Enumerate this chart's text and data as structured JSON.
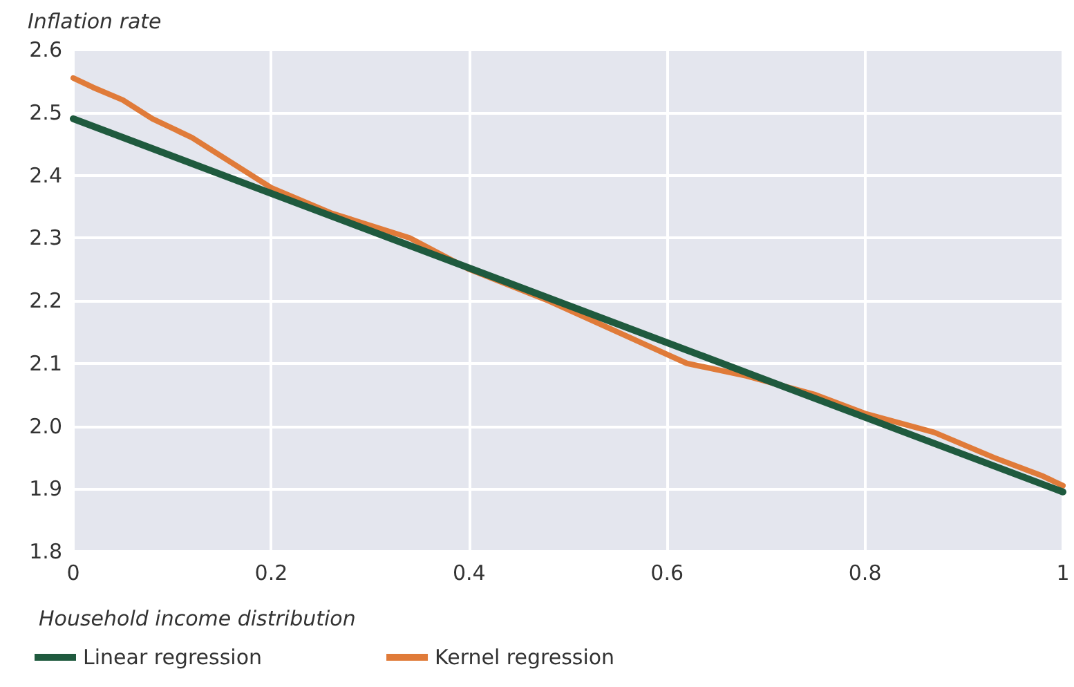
{
  "chart_data": {
    "type": "line",
    "xlabel": "Household income distribution",
    "ylabel": "Inflation rate",
    "x": [
      0,
      0.02,
      0.05,
      0.08,
      0.12,
      0.16,
      0.2,
      0.26,
      0.34,
      0.4,
      0.48,
      0.55,
      0.62,
      0.68,
      0.75,
      0.8,
      0.87,
      0.93,
      0.98,
      1
    ],
    "series": [
      {
        "name": "Linear regression",
        "color": "#1f5a3e",
        "x": [
          0,
          1
        ],
        "values": [
          2.49,
          1.895
        ]
      },
      {
        "name": "Kernel regression",
        "color": "#e07b39",
        "values": [
          2.555,
          2.54,
          2.52,
          2.49,
          2.46,
          2.42,
          2.38,
          2.34,
          2.3,
          2.25,
          2.2,
          2.15,
          2.1,
          2.08,
          2.05,
          2.02,
          1.99,
          1.95,
          1.92,
          1.905
        ]
      }
    ],
    "xlim": [
      0,
      1
    ],
    "xticks": [
      0,
      0.2,
      0.4,
      0.6,
      0.8,
      1
    ],
    "ylim": [
      1.8,
      2.6
    ],
    "yticks": [
      1.8,
      1.9,
      {
        "value": 2,
        "label": "2.0"
      },
      2.1,
      2.2,
      2.3,
      2.4,
      2.5,
      2.6
    ],
    "grid": true,
    "legend": "bottom left",
    "marker": "none",
    "line_style": "solid"
  }
}
